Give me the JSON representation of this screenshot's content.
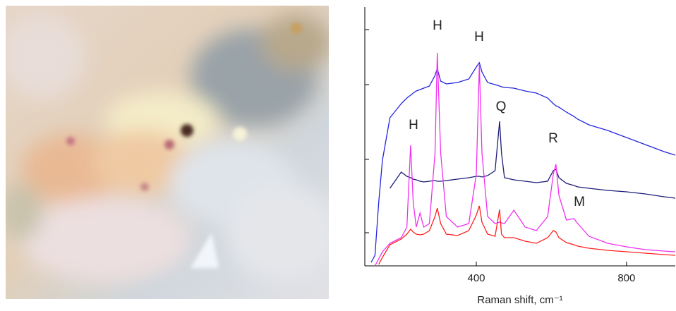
{
  "chart_data": {
    "type": "line",
    "xlabel": "Raman shift, cm⁻¹",
    "xlim": [
      103,
      930
    ],
    "xticks": [
      400,
      800
    ],
    "ylim": [
      0,
      3.67
    ],
    "yticks": [
      0.47,
      1.51,
      2.57,
      3.35
    ],
    "annotations": [
      "H",
      "H",
      "H",
      "Q",
      "R",
      "M"
    ],
    "x": [
      120,
      130,
      140,
      150,
      170,
      200,
      215,
      225,
      232,
      240,
      250,
      260,
      275,
      290,
      296,
      305,
      320,
      350,
      380,
      400,
      408,
      415,
      430,
      450,
      462,
      467,
      475,
      500,
      530,
      560,
      590,
      605,
      612,
      620,
      640,
      660,
      670,
      700,
      750,
      800,
      850,
      900,
      930
    ],
    "series": [
      {
        "color": "#2424e0",
        "values": [
          0.05,
          0.15,
          0.9,
          1.5,
          2.1,
          2.3,
          2.38,
          2.42,
          2.45,
          2.48,
          2.5,
          2.52,
          2.55,
          2.7,
          2.8,
          2.62,
          2.58,
          2.6,
          2.65,
          2.82,
          2.88,
          2.75,
          2.6,
          2.57,
          2.55,
          2.54,
          2.53,
          2.52,
          2.48,
          2.45,
          2.38,
          2.3,
          2.27,
          2.25,
          2.18,
          2.12,
          2.08,
          2.0,
          1.92,
          1.82,
          1.72,
          1.62,
          1.57
        ]
      },
      {
        "color": "#1c1c78",
        "values": [
          null,
          null,
          null,
          null,
          1.1,
          1.33,
          1.27,
          1.25,
          1.23,
          1.22,
          1.2,
          1.19,
          1.2,
          1.21,
          1.2,
          1.2,
          1.21,
          1.23,
          1.25,
          1.27,
          1.27,
          1.26,
          1.28,
          1.35,
          2.05,
          1.6,
          1.25,
          1.22,
          1.2,
          1.18,
          1.2,
          1.35,
          1.37,
          1.25,
          1.17,
          1.14,
          1.12,
          1.1,
          1.07,
          1.05,
          1.02,
          0.98,
          0.96
        ]
      },
      {
        "color": "#f030f0",
        "values": [
          null,
          0.0,
          0.1,
          0.2,
          0.32,
          0.4,
          0.55,
          1.71,
          0.9,
          0.55,
          0.75,
          0.55,
          0.6,
          1.6,
          3.02,
          1.6,
          0.7,
          0.55,
          0.6,
          1.3,
          2.85,
          1.6,
          0.7,
          0.6,
          0.62,
          0.61,
          0.6,
          0.79,
          0.55,
          0.5,
          0.7,
          1.3,
          1.44,
          1.0,
          0.65,
          0.67,
          0.6,
          0.42,
          0.32,
          0.27,
          0.23,
          0.21,
          0.2
        ]
      },
      {
        "color": "#ff2020",
        "values": [
          null,
          null,
          0.02,
          0.12,
          0.3,
          0.38,
          0.45,
          0.52,
          0.48,
          0.45,
          0.44,
          0.45,
          0.5,
          0.7,
          0.82,
          0.6,
          0.45,
          0.43,
          0.5,
          0.72,
          0.85,
          0.62,
          0.45,
          0.42,
          0.8,
          0.45,
          0.4,
          0.4,
          0.35,
          0.32,
          0.4,
          0.5,
          0.48,
          0.4,
          0.33,
          0.3,
          0.28,
          0.25,
          0.22,
          0.2,
          0.18,
          0.16,
          0.15
        ]
      }
    ]
  }
}
